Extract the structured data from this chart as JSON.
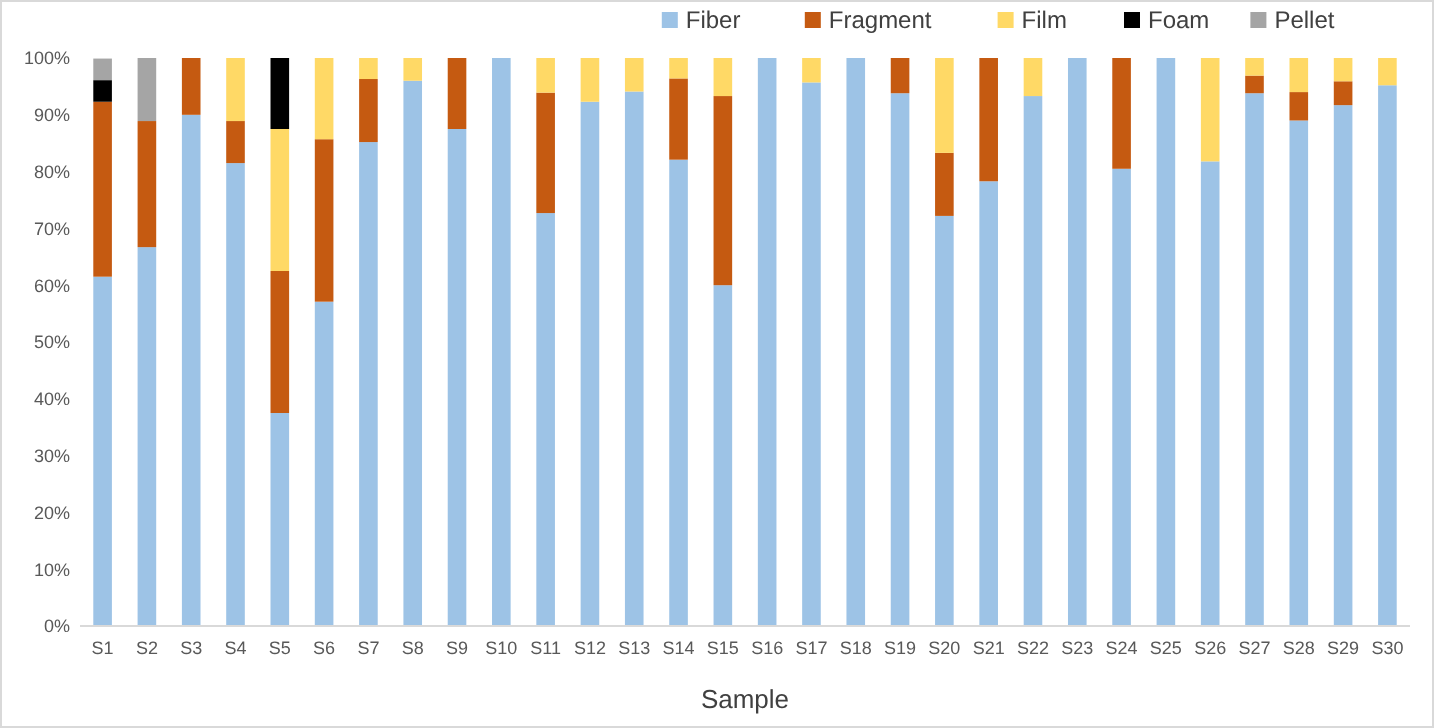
{
  "chart_data": {
    "type": "bar",
    "stacked": true,
    "xlabel": "Sample",
    "legend": "top right",
    "grid": false,
    "categories": [
      "S1",
      "S2",
      "S3",
      "S4",
      "S5",
      "S6",
      "S7",
      "S8",
      "S9",
      "S10",
      "S11",
      "S12",
      "S13",
      "S14",
      "S15",
      "S16",
      "S17",
      "S18",
      "S19",
      "S20",
      "S21",
      "S22",
      "S23",
      "S24",
      "S25",
      "S26",
      "S27",
      "S28",
      "S29",
      "S30"
    ],
    "ylim": [
      0,
      100
    ],
    "yticks": [
      {
        "value": 0,
        "label": "0%"
      },
      {
        "value": 10,
        "label": "10%"
      },
      {
        "value": 20,
        "label": "20%"
      },
      {
        "value": 30,
        "label": "30%"
      },
      {
        "value": 40,
        "label": "40%"
      },
      {
        "value": 50,
        "label": "50%"
      },
      {
        "value": 60,
        "label": "60%"
      },
      {
        "value": 70,
        "label": "70%"
      },
      {
        "value": 80,
        "label": "80%"
      },
      {
        "value": 90,
        "label": "90%"
      },
      {
        "value": 100,
        "label": "100%"
      }
    ],
    "series": [
      {
        "name": "Fiber",
        "color": "#9dc3e6",
        "values": [
          61.5,
          66.7,
          90,
          81.5,
          37.5,
          57.1,
          85.2,
          96,
          87.5,
          100,
          72.7,
          92.3,
          94.1,
          82.1,
          60,
          100,
          95.7,
          100,
          93.8,
          72.2,
          78.3,
          93.3,
          100,
          80.5,
          100,
          81.8,
          93.8,
          89,
          91.7,
          95.2
        ]
      },
      {
        "name": "Fragment",
        "color": "#c55a11",
        "values": [
          30.8,
          22.2,
          10,
          7.4,
          25,
          28.6,
          11.1,
          0,
          12.5,
          0,
          21.2,
          0,
          0,
          14.3,
          33.3,
          0,
          0,
          0,
          6.2,
          11.1,
          21.7,
          0,
          0,
          19.5,
          0,
          0,
          3.1,
          5,
          4.2,
          0
        ]
      },
      {
        "name": "Film",
        "color": "#ffd966",
        "values": [
          0,
          0,
          0,
          11.1,
          25,
          14.3,
          3.7,
          4,
          0,
          0,
          6.1,
          7.7,
          5.9,
          3.6,
          6.7,
          0,
          4.3,
          0,
          0,
          16.7,
          0,
          6.7,
          0,
          0,
          0,
          18.2,
          3.1,
          6,
          4.1,
          4.8
        ]
      },
      {
        "name": "Foam",
        "color": "#000000",
        "values": [
          3.8,
          0,
          0,
          0,
          12.5,
          0,
          0,
          0,
          0,
          0,
          0,
          0,
          0,
          0,
          0,
          0,
          0,
          0,
          0,
          0,
          0,
          0,
          0,
          0,
          0,
          0,
          0,
          0,
          0,
          0
        ]
      },
      {
        "name": "Pellet",
        "color": "#a5a5a5",
        "values": [
          3.8,
          11.1,
          0,
          0,
          0,
          0,
          0,
          0,
          0,
          0,
          0,
          0,
          0,
          0,
          0,
          0,
          0,
          0,
          0,
          0,
          0,
          0,
          0,
          0,
          0,
          0,
          0,
          0,
          0,
          0
        ]
      }
    ]
  }
}
